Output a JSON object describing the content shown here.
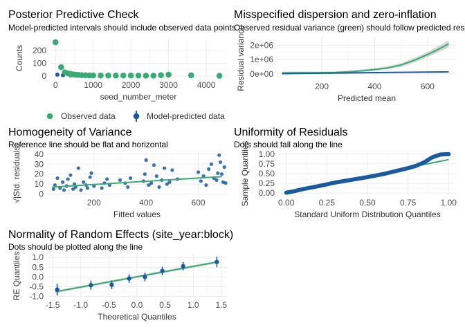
{
  "colors": {
    "green": "#3aaa74",
    "blue": "#1b5a9e",
    "band": "#c8c8c8",
    "blue_band": "#9ab4d3"
  },
  "chart_data": [
    {
      "id": "ppc",
      "type": "scatter",
      "title": "Posterior Predictive Check",
      "subtitle": "Model-predicted intervals should include observed data points",
      "xlabel": "seed_number_meter",
      "ylabel": "Counts",
      "xlim": [
        -150,
        4550
      ],
      "ylim": [
        -10,
        290
      ],
      "xticks": [
        0,
        1000,
        2000,
        3000,
        4000
      ],
      "yticks": [
        0,
        100,
        200
      ],
      "legend": {
        "position": "bottom",
        "items": [
          "Observed data",
          "Model-predicted data"
        ]
      },
      "series": [
        {
          "name": "Observed data",
          "color": "green",
          "points": [
            [
              0,
              263
            ],
            [
              150,
              70
            ],
            [
              250,
              30
            ],
            [
              330,
              22
            ],
            [
              400,
              18
            ],
            [
              470,
              14
            ],
            [
              540,
              11
            ],
            [
              610,
              10
            ],
            [
              700,
              8
            ],
            [
              800,
              7
            ],
            [
              900,
              6
            ],
            [
              1000,
              6
            ],
            [
              1200,
              5
            ],
            [
              1400,
              5
            ],
            [
              1600,
              5
            ],
            [
              1800,
              5
            ],
            [
              2000,
              5
            ],
            [
              2200,
              5
            ],
            [
              2400,
              4
            ],
            [
              2600,
              4
            ],
            [
              2800,
              8
            ],
            [
              3000,
              12
            ],
            [
              3600,
              7
            ],
            [
              4350,
              3
            ]
          ]
        },
        {
          "name": "Model-predicted data",
          "color": "blue",
          "points": [
            [
              50,
              12
            ],
            [
              200,
              8
            ],
            [
              400,
              6
            ],
            [
              800,
              5
            ],
            [
              1200,
              5
            ],
            [
              1600,
              4
            ],
            [
              2000,
              4
            ],
            [
              2400,
              4
            ],
            [
              2800,
              4
            ],
            [
              3000,
              5
            ],
            [
              3600,
              4
            ],
            [
              4350,
              3
            ]
          ]
        }
      ]
    },
    {
      "id": "disp",
      "type": "line",
      "title": "Misspecified dispersion and zero-inflation",
      "subtitle": "Observed residual variance (green) should follow predicted residual variance (blue)",
      "xlabel": "Predicted mean",
      "ylabel": "Residual variance",
      "xlim": [
        30,
        710
      ],
      "ylim": [
        -350000,
        2550000
      ],
      "xticks": [
        200,
        400,
        600
      ],
      "yticks": [
        0,
        1000000,
        2000000
      ],
      "ytick_labels": [
        "0e+00",
        "1e+06",
        "2e+06"
      ],
      "series": [
        {
          "name": "Observed residual variance",
          "color": "green",
          "x": [
            50,
            100,
            150,
            200,
            250,
            300,
            350,
            400,
            450,
            500,
            550,
            600,
            650,
            680
          ],
          "y": [
            60000,
            70000,
            75000,
            80000,
            95000,
            140000,
            210000,
            300000,
            420000,
            620000,
            950000,
            1350000,
            1800000,
            2100000
          ],
          "band_half": [
            90000,
            90000,
            80000,
            70000,
            70000,
            80000,
            90000,
            100000,
            110000,
            130000,
            150000,
            180000,
            220000,
            250000
          ]
        },
        {
          "name": "Predicted residual variance",
          "color": "blue",
          "x": [
            50,
            680
          ],
          "y": [
            10000,
            140000
          ]
        }
      ]
    },
    {
      "id": "homog",
      "type": "scatter",
      "title": "Homogeneity of Variance",
      "subtitle": "Reference line should be flat and horizontal",
      "xlabel": "Fitted values",
      "ylabel": "√|Std. residuals|",
      "xlim": [
        20,
        710
      ],
      "ylim": [
        -1,
        42
      ],
      "xticks": [
        200,
        400,
        600
      ],
      "yticks": [
        0,
        10,
        20,
        30,
        40
      ],
      "line": {
        "x": [
          40,
          690
        ],
        "y": [
          7,
          17.5
        ],
        "color": "green"
      },
      "points": [
        [
          45,
          5
        ],
        [
          50,
          9
        ],
        [
          60,
          16
        ],
        [
          70,
          6
        ],
        [
          80,
          12
        ],
        [
          85,
          4
        ],
        [
          95,
          8
        ],
        [
          100,
          15
        ],
        [
          110,
          19
        ],
        [
          120,
          5
        ],
        [
          125,
          10
        ],
        [
          130,
          7
        ],
        [
          140,
          26
        ],
        [
          150,
          4
        ],
        [
          160,
          12
        ],
        [
          170,
          9
        ],
        [
          175,
          6
        ],
        [
          185,
          17
        ],
        [
          190,
          21
        ],
        [
          200,
          8
        ],
        [
          230,
          6
        ],
        [
          240,
          11
        ],
        [
          250,
          15
        ],
        [
          260,
          9
        ],
        [
          300,
          14
        ],
        [
          320,
          11
        ],
        [
          330,
          7
        ],
        [
          340,
          16
        ],
        [
          390,
          13
        ],
        [
          395,
          20
        ],
        [
          400,
          34
        ],
        [
          410,
          9
        ],
        [
          420,
          11
        ],
        [
          430,
          29
        ],
        [
          440,
          18
        ],
        [
          450,
          7
        ],
        [
          460,
          14
        ],
        [
          470,
          26
        ],
        [
          480,
          10
        ],
        [
          490,
          12
        ],
        [
          500,
          24
        ],
        [
          520,
          15
        ],
        [
          600,
          22
        ],
        [
          610,
          13
        ],
        [
          620,
          18
        ],
        [
          630,
          9
        ],
        [
          640,
          25
        ],
        [
          650,
          30
        ],
        [
          660,
          16
        ],
        [
          670,
          14
        ],
        [
          675,
          21
        ],
        [
          680,
          39
        ],
        [
          685,
          32
        ],
        [
          690,
          20
        ],
        [
          695,
          12
        ],
        [
          700,
          27
        ],
        [
          705,
          11
        ]
      ]
    },
    {
      "id": "unif",
      "type": "scatter",
      "title": "Uniformity of Residuals",
      "subtitle": "Dots should fall along the line",
      "xlabel": "Standard Uniform Distribution Quantiles",
      "ylabel": "Sample Quantiles",
      "xlim": [
        -0.05,
        1.05
      ],
      "ylim": [
        -0.05,
        1.05
      ],
      "xticks": [
        0.0,
        0.25,
        0.5,
        0.75,
        1.0
      ],
      "xtick_labels": [
        "0.00",
        "0.25",
        "0.50",
        "0.75",
        "1.00"
      ],
      "yticks": [
        0.0,
        0.25,
        0.5,
        0.75,
        1.0
      ],
      "ytick_labels": [
        "0.00",
        "0.25",
        "0.50",
        "0.75",
        "1.00"
      ],
      "line": {
        "x": [
          0,
          1
        ],
        "y": [
          0.02,
          0.86
        ],
        "color": "green"
      },
      "points_curve": [
        [
          0.0,
          0.01
        ],
        [
          0.05,
          0.05
        ],
        [
          0.1,
          0.1
        ],
        [
          0.2,
          0.18
        ],
        [
          0.3,
          0.27
        ],
        [
          0.4,
          0.34
        ],
        [
          0.5,
          0.41
        ],
        [
          0.6,
          0.49
        ],
        [
          0.7,
          0.59
        ],
        [
          0.75,
          0.64
        ],
        [
          0.8,
          0.7
        ],
        [
          0.85,
          0.79
        ],
        [
          0.9,
          0.92
        ],
        [
          0.95,
          0.99
        ],
        [
          1.0,
          1.0
        ]
      ]
    },
    {
      "id": "re",
      "type": "scatter",
      "title": "Normality of Random Effects (site_year:block)",
      "subtitle": "Dots should be plotted along the line",
      "xlabel": "Theoretical Quantiles",
      "ylabel": "RE Quantiles",
      "xlim": [
        -1.6,
        1.6
      ],
      "ylim": [
        -1.05,
        1.15
      ],
      "xticks": [
        -1.5,
        -1.0,
        -0.5,
        0.0,
        0.5,
        1.0,
        1.5
      ],
      "xtick_labels": [
        "-1.5",
        "-1.0",
        "-0.5",
        "0.0",
        "0.5",
        "1.0",
        "1.5"
      ],
      "yticks": [
        -1.0,
        -0.5,
        0.0,
        0.5,
        1.0
      ],
      "ytick_labels": [
        "-1.0",
        "-0.5",
        "0.0",
        "0.5",
        "1.0"
      ],
      "line": {
        "x": [
          -1.45,
          1.45
        ],
        "y": [
          -0.76,
          0.78
        ],
        "color": "green"
      },
      "points": [
        {
          "x": -1.42,
          "y": -0.65,
          "lo": -0.95,
          "hi": -0.35
        },
        {
          "x": -0.82,
          "y": -0.42,
          "lo": -0.65,
          "hi": -0.19
        },
        {
          "x": -0.45,
          "y": -0.4,
          "lo": -0.62,
          "hi": -0.18
        },
        {
          "x": -0.14,
          "y": -0.08,
          "lo": -0.3,
          "hi": 0.14
        },
        {
          "x": 0.14,
          "y": 0.0,
          "lo": -0.22,
          "hi": 0.22
        },
        {
          "x": 0.45,
          "y": 0.31,
          "lo": 0.09,
          "hi": 0.53
        },
        {
          "x": 0.82,
          "y": 0.55,
          "lo": 0.33,
          "hi": 0.77
        },
        {
          "x": 1.42,
          "y": 0.77,
          "lo": 0.5,
          "hi": 1.04
        }
      ]
    }
  ]
}
